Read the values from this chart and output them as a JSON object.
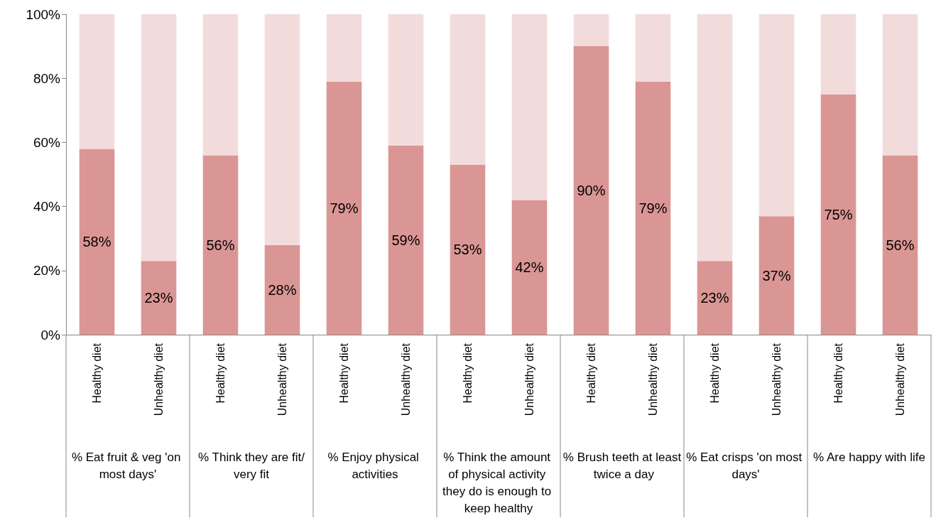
{
  "chart_data": {
    "type": "bar",
    "stacked": true,
    "categories": [
      "Healthy diet",
      "Unhealthy diet",
      "Healthy diet",
      "Unhealthy diet",
      "Healthy diet",
      "Unhealthy diet",
      "Healthy diet",
      "Unhealthy diet",
      "Healthy diet",
      "Unhealthy diet",
      "Healthy diet",
      "Unhealthy diet",
      "Healthy diet",
      "Unhealthy diet"
    ],
    "annotations": [
      "% Eat fruit & veg 'on most days'",
      "% Think they are fit/very fit",
      "% Enjoy physical activities",
      "% Think the amount of physical activity they do is enough to keep healthy",
      "% Brush teeth at least twice a day",
      "% Eat crisps 'on most days'",
      "% Are happy with life"
    ],
    "ylim": [
      0,
      100
    ],
    "yticks": [
      {
        "value": 0,
        "label": "0%"
      },
      {
        "value": 20,
        "label": "20%"
      },
      {
        "value": 40,
        "label": "40%"
      },
      {
        "value": 60,
        "label": "60%"
      },
      {
        "value": 80,
        "label": "80%"
      },
      {
        "value": 100,
        "label": "100%"
      }
    ],
    "series": [
      {
        "color": "#da9694",
        "values": [
          58,
          23,
          56,
          28,
          79,
          59,
          53,
          42,
          90,
          79,
          23,
          37,
          75,
          56
        ],
        "value_labels": [
          "58%",
          "23%",
          "56%",
          "28%",
          "79%",
          "59%",
          "53%",
          "42%",
          "90%",
          "79%",
          "23%",
          "37%",
          "75%",
          "56%"
        ]
      },
      {
        "color": "#f2dcdb",
        "values": [
          42,
          77,
          44,
          72,
          21,
          41,
          47,
          58,
          10,
          21,
          77,
          63,
          25,
          44
        ]
      }
    ]
  }
}
